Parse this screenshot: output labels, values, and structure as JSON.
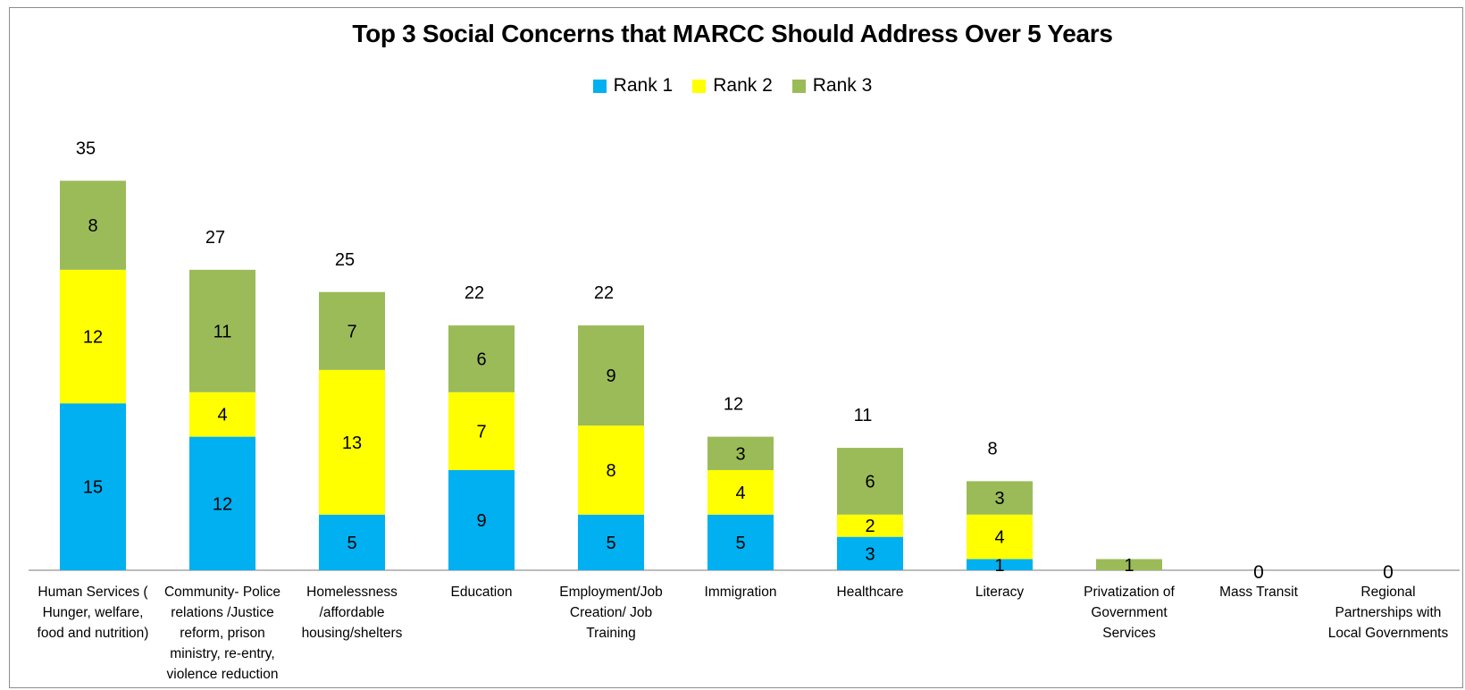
{
  "chart_data": {
    "type": "bar",
    "stacked": true,
    "title": "Top 3 Social Concerns that MARCC Should Address Over 5 Years",
    "categories": [
      "Human Services ( Hunger, welfare, food and nutrition)",
      "Community- Police relations /Justice reform, prison ministry, re-entry, violence reduction",
      "Homelessness /affordable housing/shelters",
      "Education",
      "Employment/Job Creation/ Job Training",
      "Immigration",
      "Healthcare",
      "Literacy",
      "Privatization of Government Services",
      "Mass Transit",
      "Regional Partnerships with Local Governments"
    ],
    "category_lines": [
      [
        "Human Services (",
        "Hunger,  welfare,",
        "food and nutrition)"
      ],
      [
        "Community- Police",
        "relations /Justice",
        "reform, prison",
        "ministry, re-entry,",
        "violence reduction"
      ],
      [
        "Homelessness",
        "/affordable",
        "housing/shelters"
      ],
      [
        "Education"
      ],
      [
        "Employment/Job",
        "Creation/ Job",
        "Training"
      ],
      [
        "Immigration"
      ],
      [
        "Healthcare"
      ],
      [
        "Literacy"
      ],
      [
        "Privatization of",
        "Government",
        "Services"
      ],
      [
        "Mass Transit"
      ],
      [
        "Regional",
        "Partnerships with",
        "Local Governments"
      ]
    ],
    "series": [
      {
        "name": "Rank 1",
        "color": "#00b0f0",
        "values": [
          15,
          12,
          5,
          9,
          5,
          5,
          3,
          1,
          0,
          0,
          0
        ]
      },
      {
        "name": "Rank 2",
        "color": "#ffff00",
        "values": [
          12,
          4,
          13,
          7,
          8,
          4,
          2,
          4,
          0,
          0,
          0
        ]
      },
      {
        "name": "Rank 3",
        "color": "#9bbb59",
        "values": [
          8,
          11,
          7,
          6,
          9,
          3,
          6,
          3,
          1,
          0,
          0
        ]
      }
    ],
    "totals": [
      35,
      27,
      25,
      22,
      22,
      12,
      11,
      8,
      null,
      null,
      null
    ],
    "zero_labels": [
      null,
      null,
      null,
      null,
      null,
      null,
      null,
      null,
      null,
      "0",
      "0"
    ],
    "legend_position": "top",
    "grid": false
  }
}
